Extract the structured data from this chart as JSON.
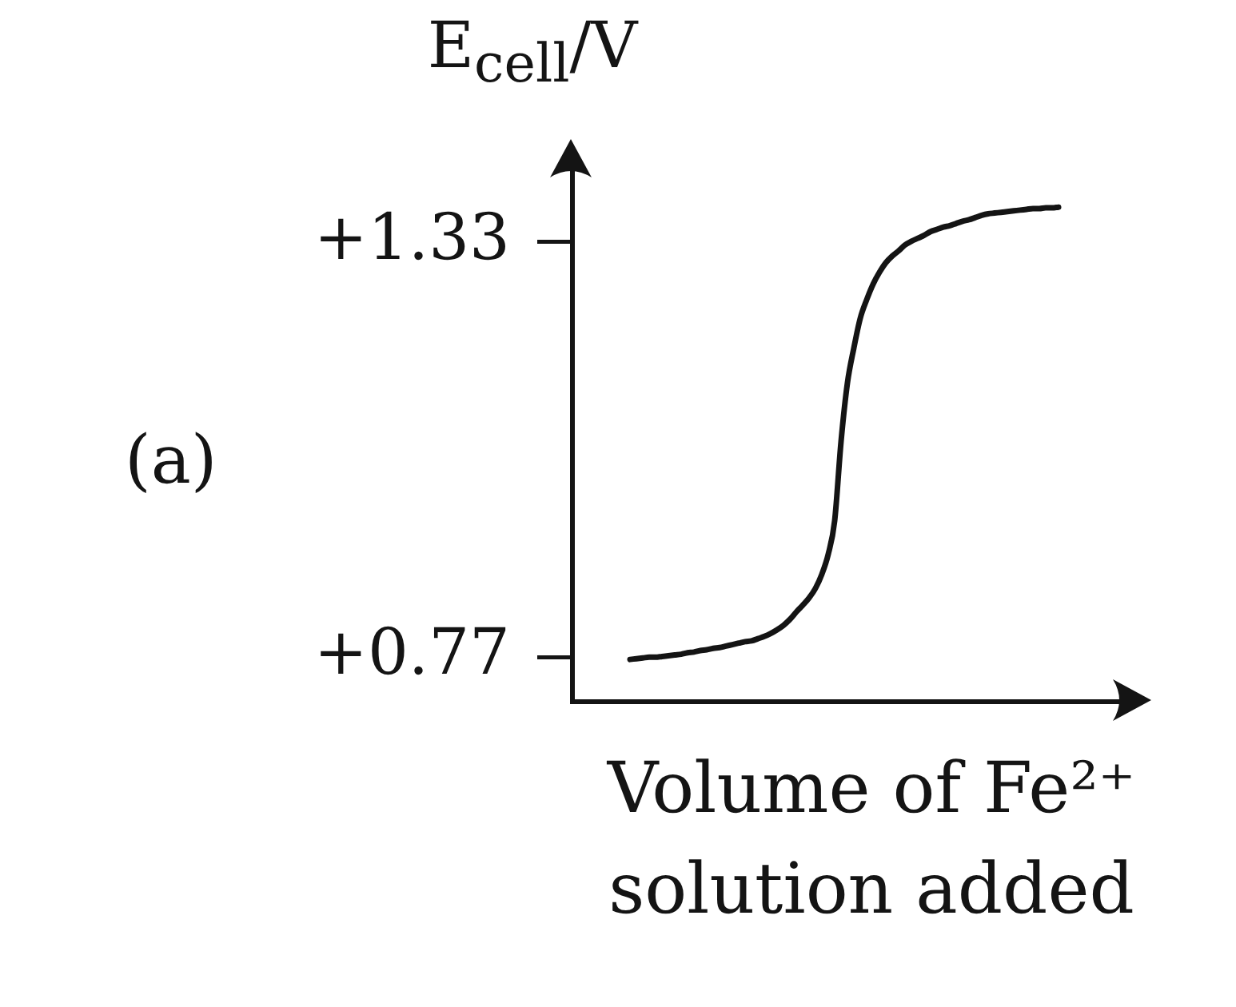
{
  "chart_data": {
    "type": "line",
    "ylabel": "E$_{cell}$/V",
    "xlabel": "Volume of Fe²⁺ solution added",
    "annotations": [
      "(a)"
    ],
    "categories": [
      null,
      null,
      null,
      null,
      null,
      null,
      null,
      null,
      null,
      null,
      null,
      null,
      null,
      null,
      null,
      null,
      null,
      null,
      null,
      null,
      null,
      null,
      null,
      null,
      null,
      null,
      null,
      null,
      null,
      null,
      null,
      null,
      null,
      null,
      null,
      null,
      null,
      null,
      null,
      null,
      null,
      null,
      null,
      null,
      null,
      null,
      null,
      null,
      null,
      null,
      null,
      null,
      null,
      null,
      null,
      null,
      null,
      null,
      null,
      null,
      null,
      null,
      null,
      null,
      null,
      null,
      null,
      null,
      null,
      null,
      null,
      null,
      null,
      null,
      null,
      null,
      null,
      null,
      null,
      null,
      null,
      null,
      null,
      null,
      null,
      null,
      null
    ],
    "series": [
      {
        "color": "#141414",
        "values": [
          null,
          null,
          null,
          null,
          null,
          null,
          null,
          null,
          null,
          0.767,
          0.768,
          0.769,
          0.77,
          0.77,
          0.771,
          0.772,
          0.773,
          0.774,
          0.776,
          0.777,
          0.779,
          0.78,
          0.782,
          0.783,
          0.785,
          0.787,
          0.789,
          0.791,
          0.792,
          0.795,
          0.798,
          0.802,
          0.807,
          0.813,
          0.821,
          0.831,
          0.84,
          0.85,
          0.863,
          0.882,
          0.909,
          0.954,
          1.061,
          1.14,
          1.187,
          1.227,
          1.252,
          1.273,
          1.289,
          1.302,
          1.311,
          1.318,
          1.326,
          1.331,
          1.335,
          1.339,
          1.344,
          1.347,
          1.35,
          1.352,
          1.355,
          1.358,
          1.36,
          1.363,
          1.366,
          1.368,
          1.369,
          1.37,
          1.371,
          1.372,
          1.373,
          1.374,
          1.375,
          1.375,
          1.376,
          1.376,
          1.377,
          null,
          null,
          null,
          null,
          null,
          null,
          null,
          null,
          null,
          null
        ]
      }
    ],
    "ylim": [
      0.71,
      1.43
    ],
    "yticks": [
      {
        "value": 0.77,
        "label": "+0.77"
      },
      {
        "value": 1.33,
        "label": "+1.33"
      }
    ],
    "grid": false,
    "legend": false,
    "tick_labels": "y",
    "marker": "none",
    "line_style": "solid"
  }
}
